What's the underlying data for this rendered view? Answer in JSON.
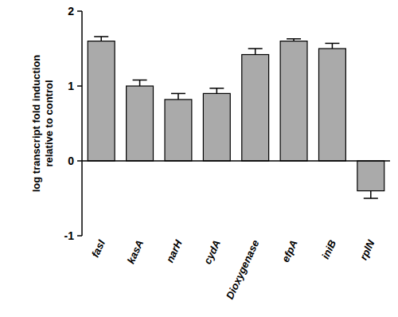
{
  "chart_data": {
    "type": "bar",
    "ylabel": "log transcript fold induction relative to control",
    "categories": [
      "fasI",
      "kasA",
      "narH",
      "cydA",
      "Dioxygenase",
      "efpA",
      "iniB",
      "rplN"
    ],
    "values": [
      1.6,
      1.0,
      0.82,
      0.9,
      1.42,
      1.6,
      1.5,
      -0.4
    ],
    "errors": [
      0.06,
      0.08,
      0.08,
      0.07,
      0.08,
      0.03,
      0.07,
      0.1
    ],
    "color": "#aaaaaa",
    "ylim": [
      -1,
      2
    ],
    "yticks": [
      -1,
      0,
      1,
      2
    ],
    "grid": false
  }
}
